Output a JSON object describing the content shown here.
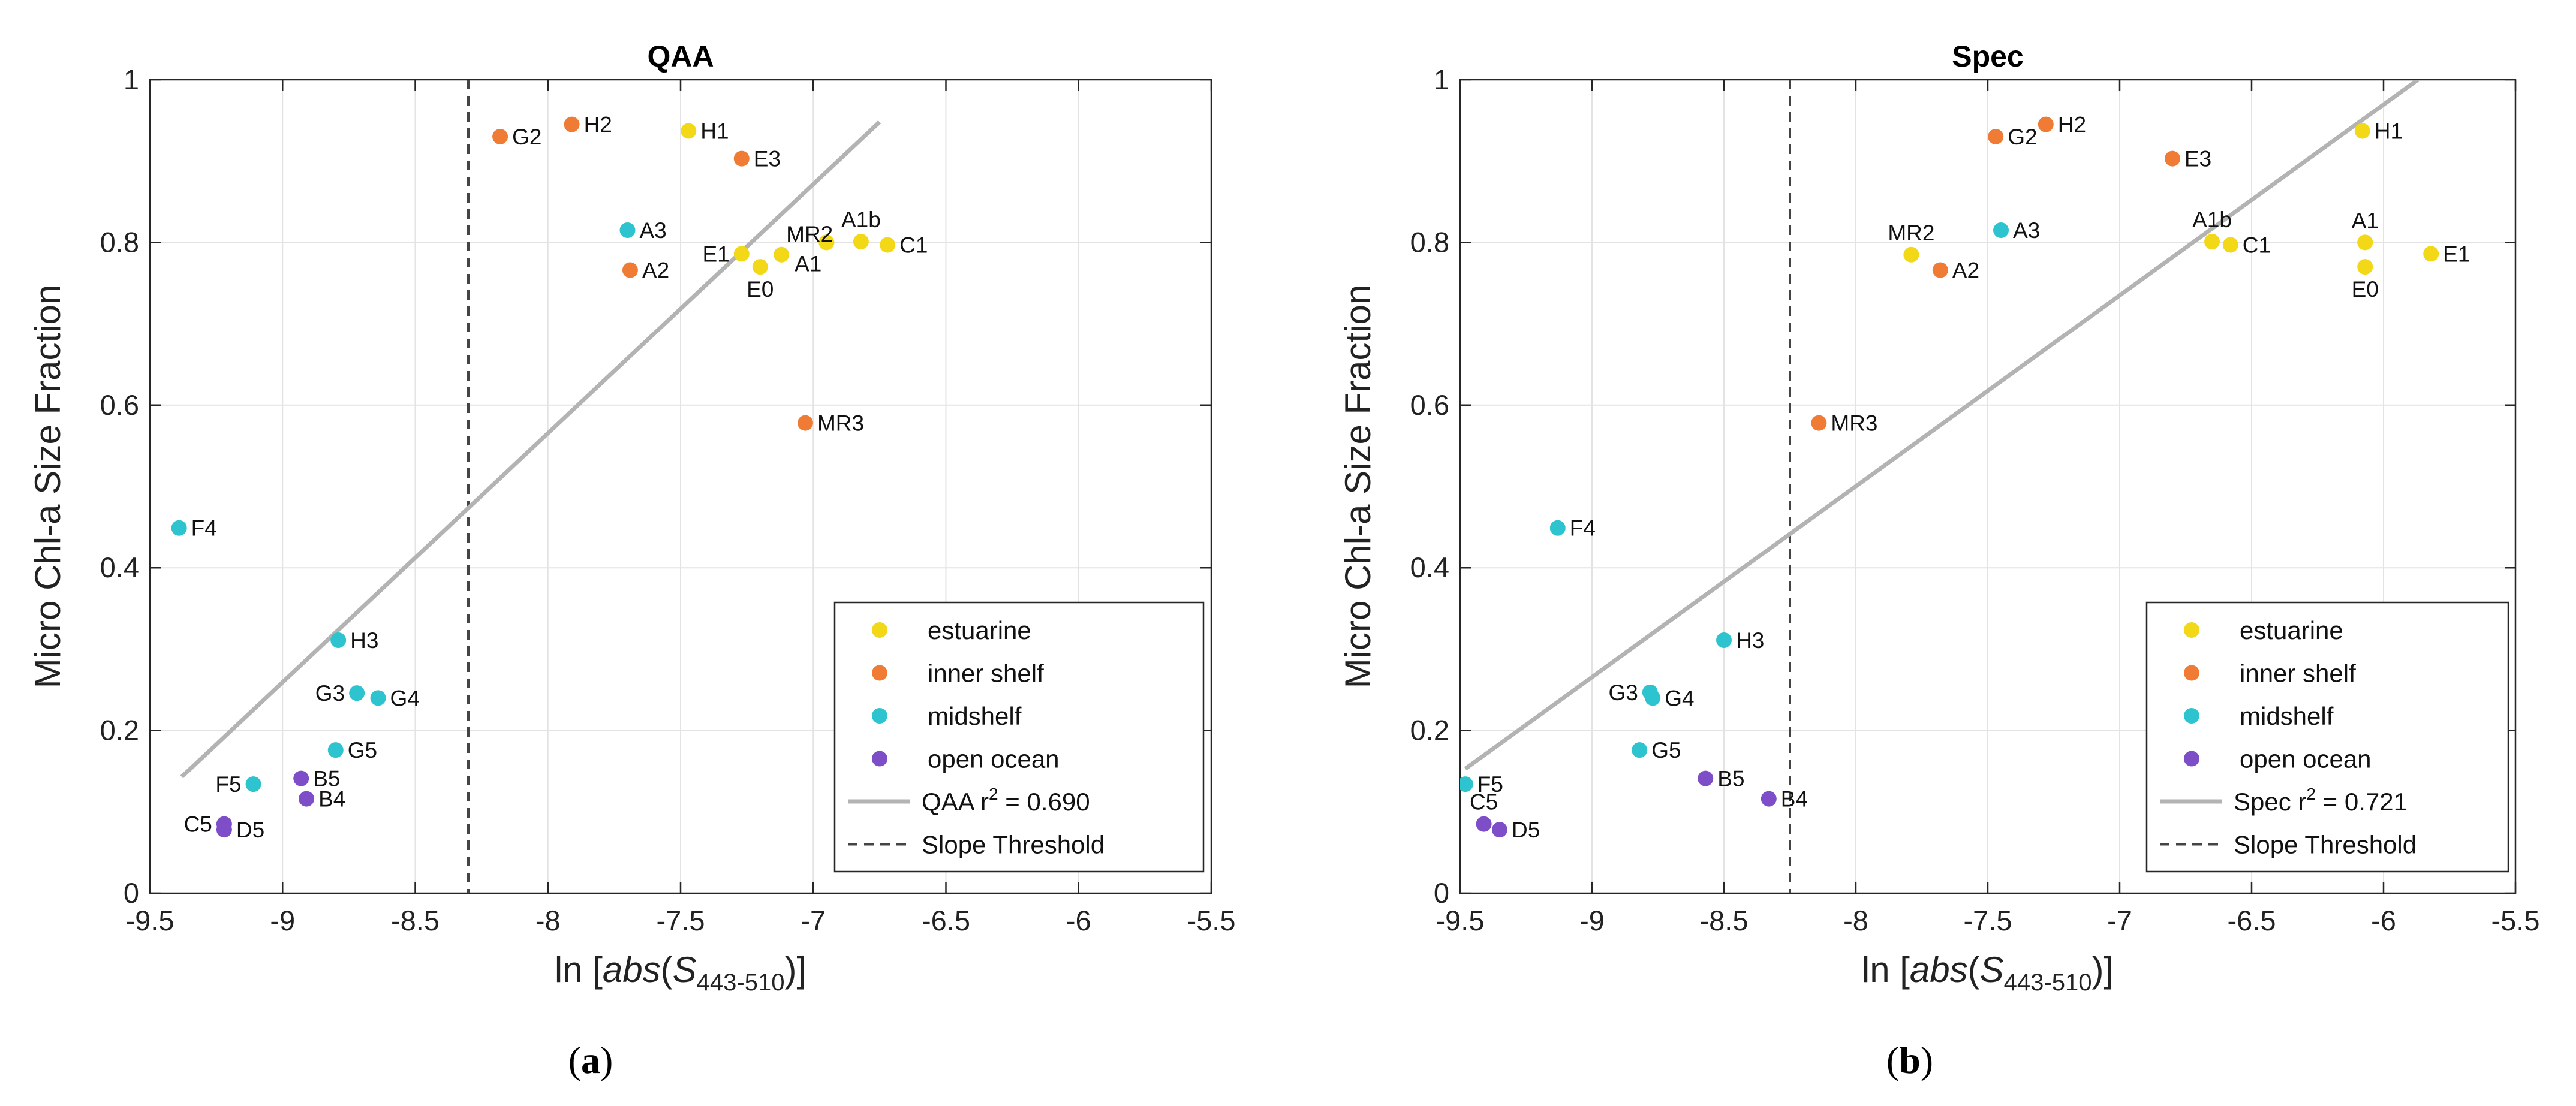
{
  "colors": {
    "estuarine": "#f2d816",
    "inner_shelf": "#ef7b35",
    "midshelf": "#2ec4cf",
    "open_ocean": "#7d4ec8",
    "fit_line": "#b3b3b3",
    "threshold": "#444444",
    "grid": "#e3e3e3"
  },
  "chart_data": [
    {
      "type": "scatter",
      "title": "QAA",
      "panel_label": "a",
      "xlabel_prefix": "ln [",
      "xlabel_func": "abs",
      "xlabel_var": "S",
      "xlabel_sub": "443-510",
      "xlabel_suffix": ")]",
      "ylabel": "Micro Chl-a Size Fraction",
      "xlim": [
        -9.5,
        -5.5
      ],
      "ylim": [
        0,
        1
      ],
      "xticks": [
        -9.5,
        -9,
        -8.5,
        -8,
        -7.5,
        -7,
        -6.5,
        -6,
        -5.5
      ],
      "xtick_labels": [
        "-9.5",
        "-9",
        "-8.5",
        "-8",
        "-7.5",
        "-7",
        "-6.5",
        "-6",
        "-5.5"
      ],
      "yticks": [
        0,
        0.2,
        0.4,
        0.6,
        0.8,
        1
      ],
      "ytick_labels": [
        "0",
        "0.2",
        "0.4",
        "0.6",
        "0.8",
        "1"
      ],
      "grid": true,
      "legend_position": "bottom-right",
      "fit_line": {
        "x": [
          -9.38,
          -6.75
        ],
        "y": [
          0.143,
          0.948
        ]
      },
      "threshold_x": -8.3,
      "legend": [
        {
          "name": "estuarine",
          "kind": "marker",
          "group": "estuarine"
        },
        {
          "name": "inner shelf",
          "kind": "marker",
          "group": "inner_shelf"
        },
        {
          "name": "midshelf",
          "kind": "marker",
          "group": "midshelf"
        },
        {
          "name": "open ocean",
          "kind": "marker",
          "group": "open_ocean"
        },
        {
          "name": "QAA r",
          "sup": "2",
          "tail": " = 0.690",
          "kind": "line"
        },
        {
          "name": "Slope Threshold",
          "kind": "dash"
        }
      ],
      "points": [
        {
          "label": "H1",
          "x": -7.47,
          "y": 0.937,
          "group": "estuarine",
          "pos": "right"
        },
        {
          "label": "E1",
          "x": -7.27,
          "y": 0.786,
          "group": "estuarine",
          "pos": "left"
        },
        {
          "label": "E0",
          "x": -7.2,
          "y": 0.77,
          "group": "estuarine",
          "pos": "below"
        },
        {
          "label": "MR2",
          "x": -7.12,
          "y": 0.785,
          "group": "estuarine",
          "pos": "aboveright"
        },
        {
          "label": "A1",
          "x": -6.95,
          "y": 0.8,
          "group": "estuarine",
          "pos": "belowleft"
        },
        {
          "label": "A1b",
          "x": -6.82,
          "y": 0.801,
          "group": "estuarine",
          "pos": "above"
        },
        {
          "label": "C1",
          "x": -6.72,
          "y": 0.797,
          "group": "estuarine",
          "pos": "right"
        },
        {
          "label": "G2",
          "x": -8.18,
          "y": 0.93,
          "group": "inner_shelf",
          "pos": "right"
        },
        {
          "label": "H2",
          "x": -7.91,
          "y": 0.945,
          "group": "inner_shelf",
          "pos": "right"
        },
        {
          "label": "E3",
          "x": -7.27,
          "y": 0.903,
          "group": "inner_shelf",
          "pos": "right"
        },
        {
          "label": "A2",
          "x": -7.69,
          "y": 0.766,
          "group": "inner_shelf",
          "pos": "right"
        },
        {
          "label": "MR3",
          "x": -7.03,
          "y": 0.578,
          "group": "inner_shelf",
          "pos": "right"
        },
        {
          "label": "A3",
          "x": -7.7,
          "y": 0.815,
          "group": "midshelf",
          "pos": "right"
        },
        {
          "label": "F4",
          "x": -9.39,
          "y": 0.449,
          "group": "midshelf",
          "pos": "right"
        },
        {
          "label": "H3",
          "x": -8.79,
          "y": 0.311,
          "group": "midshelf",
          "pos": "right"
        },
        {
          "label": "G3",
          "x": -8.72,
          "y": 0.246,
          "group": "midshelf",
          "pos": "left"
        },
        {
          "label": "G4",
          "x": -8.64,
          "y": 0.24,
          "group": "midshelf",
          "pos": "right"
        },
        {
          "label": "G5",
          "x": -8.8,
          "y": 0.176,
          "group": "midshelf",
          "pos": "right"
        },
        {
          "label": "F5",
          "x": -9.11,
          "y": 0.134,
          "group": "midshelf",
          "pos": "left"
        },
        {
          "label": "B5",
          "x": -8.93,
          "y": 0.141,
          "group": "open_ocean",
          "pos": "right"
        },
        {
          "label": "B4",
          "x": -8.91,
          "y": 0.116,
          "group": "open_ocean",
          "pos": "right"
        },
        {
          "label": "C5",
          "x": -9.22,
          "y": 0.085,
          "group": "open_ocean",
          "pos": "left"
        },
        {
          "label": "D5",
          "x": -9.22,
          "y": 0.078,
          "group": "open_ocean",
          "pos": "right"
        }
      ]
    },
    {
      "type": "scatter",
      "title": "Spec",
      "panel_label": "b",
      "xlabel_prefix": "ln [",
      "xlabel_func": "abs",
      "xlabel_var": "S",
      "xlabel_sub": "443-510",
      "xlabel_suffix": ")]",
      "ylabel": "Micro Chl-a Size Fraction",
      "xlim": [
        -9.5,
        -5.5
      ],
      "ylim": [
        0,
        1
      ],
      "xticks": [
        -9.5,
        -9,
        -8.5,
        -8,
        -7.5,
        -7,
        -6.5,
        -6,
        -5.5
      ],
      "xtick_labels": [
        "-9.5",
        "-9",
        "-8.5",
        "-8",
        "-7.5",
        "-7",
        "-6.5",
        "-6",
        "-5.5"
      ],
      "yticks": [
        0,
        0.2,
        0.4,
        0.6,
        0.8,
        1
      ],
      "ytick_labels": [
        "0",
        "0.2",
        "0.4",
        "0.6",
        "0.8",
        "1"
      ],
      "grid": true,
      "legend_position": "bottom-right",
      "fit_line": {
        "x": [
          -9.48,
          -5.87
        ],
        "y": [
          0.153,
          1.0
        ]
      },
      "threshold_x": -8.25,
      "legend": [
        {
          "name": "estuarine",
          "kind": "marker",
          "group": "estuarine"
        },
        {
          "name": "inner shelf",
          "kind": "marker",
          "group": "inner_shelf"
        },
        {
          "name": "midshelf",
          "kind": "marker",
          "group": "midshelf"
        },
        {
          "name": "open ocean",
          "kind": "marker",
          "group": "open_ocean"
        },
        {
          "name": "Spec r",
          "sup": "2",
          "tail": " = 0.721",
          "kind": "line"
        },
        {
          "name": "Slope Threshold",
          "kind": "dash"
        }
      ],
      "points": [
        {
          "label": "H1",
          "x": -6.08,
          "y": 0.937,
          "group": "estuarine",
          "pos": "right"
        },
        {
          "label": "MR2",
          "x": -7.79,
          "y": 0.785,
          "group": "estuarine",
          "pos": "above"
        },
        {
          "label": "A1b",
          "x": -6.65,
          "y": 0.801,
          "group": "estuarine",
          "pos": "above"
        },
        {
          "label": "C1",
          "x": -6.58,
          "y": 0.797,
          "group": "estuarine",
          "pos": "right"
        },
        {
          "label": "A1",
          "x": -6.07,
          "y": 0.8,
          "group": "estuarine",
          "pos": "above"
        },
        {
          "label": "E0",
          "x": -6.07,
          "y": 0.77,
          "group": "estuarine",
          "pos": "below"
        },
        {
          "label": "E1",
          "x": -5.82,
          "y": 0.786,
          "group": "estuarine",
          "pos": "right"
        },
        {
          "label": "G2",
          "x": -7.47,
          "y": 0.93,
          "group": "inner_shelf",
          "pos": "right"
        },
        {
          "label": "H2",
          "x": -7.28,
          "y": 0.945,
          "group": "inner_shelf",
          "pos": "right"
        },
        {
          "label": "E3",
          "x": -6.8,
          "y": 0.903,
          "group": "inner_shelf",
          "pos": "right"
        },
        {
          "label": "A2",
          "x": -7.68,
          "y": 0.766,
          "group": "inner_shelf",
          "pos": "right"
        },
        {
          "label": "MR3",
          "x": -8.14,
          "y": 0.578,
          "group": "inner_shelf",
          "pos": "right"
        },
        {
          "label": "A3",
          "x": -7.45,
          "y": 0.815,
          "group": "midshelf",
          "pos": "right"
        },
        {
          "label": "F4",
          "x": -9.13,
          "y": 0.449,
          "group": "midshelf",
          "pos": "right"
        },
        {
          "label": "H3",
          "x": -8.5,
          "y": 0.311,
          "group": "midshelf",
          "pos": "right"
        },
        {
          "label": "G3",
          "x": -8.78,
          "y": 0.247,
          "group": "midshelf",
          "pos": "left"
        },
        {
          "label": "G4",
          "x": -8.77,
          "y": 0.24,
          "group": "midshelf",
          "pos": "right"
        },
        {
          "label": "G5",
          "x": -8.82,
          "y": 0.176,
          "group": "midshelf",
          "pos": "right"
        },
        {
          "label": "F5",
          "x": -9.48,
          "y": 0.134,
          "group": "midshelf",
          "pos": "right"
        },
        {
          "label": "B5",
          "x": -8.57,
          "y": 0.141,
          "group": "open_ocean",
          "pos": "right"
        },
        {
          "label": "B4",
          "x": -8.33,
          "y": 0.116,
          "group": "open_ocean",
          "pos": "right"
        },
        {
          "label": "C5",
          "x": -9.41,
          "y": 0.085,
          "group": "open_ocean",
          "pos": "above"
        },
        {
          "label": "D5",
          "x": -9.35,
          "y": 0.078,
          "group": "open_ocean",
          "pos": "right"
        }
      ]
    }
  ]
}
